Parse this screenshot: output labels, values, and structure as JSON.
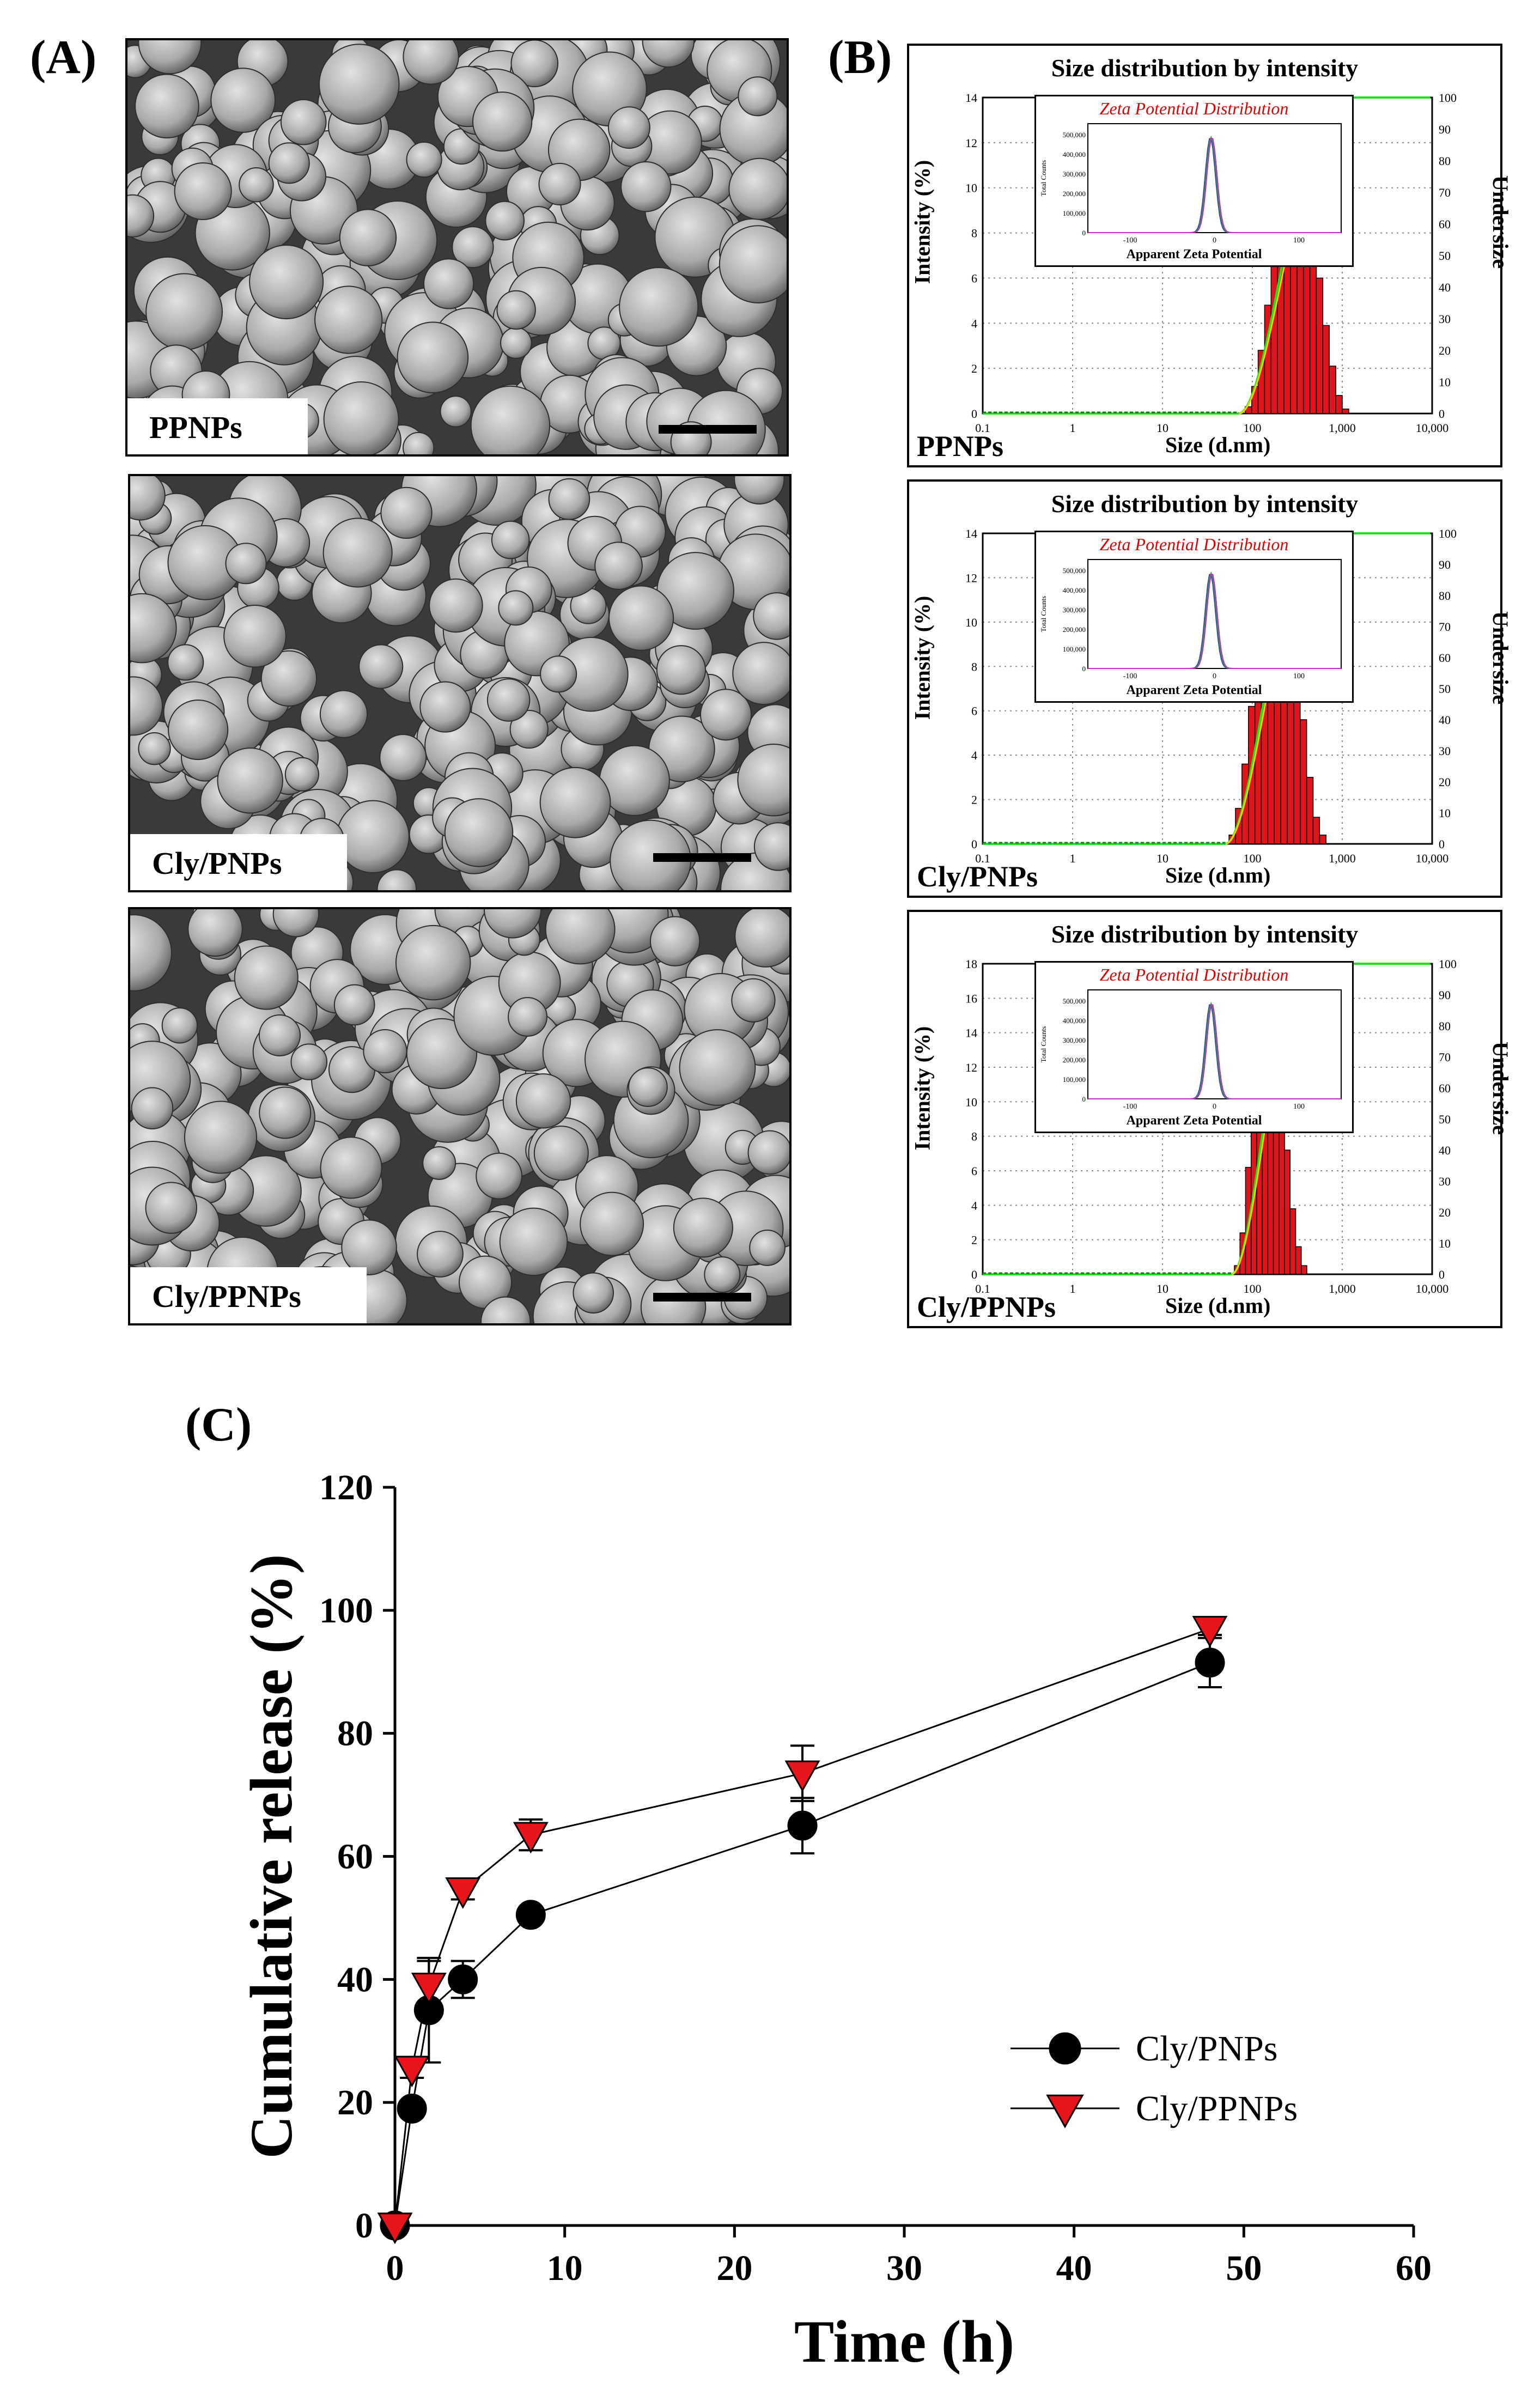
{
  "figure": {
    "panel_a_label": "(A)",
    "panel_b_label": "(B)",
    "panel_c_label": "(C)"
  },
  "sem_panels": [
    {
      "label": "PPNPs"
    },
    {
      "label": "Cly/PNPs"
    },
    {
      "label": "Cly/PPNPs"
    }
  ],
  "dls_panels": [
    {
      "title": "Size distribution  by intensity",
      "sample": "PPNPs",
      "xlabel": "Size (d.nm)",
      "ylabel_left": "Intensity (%)",
      "ylabel_right": "Undersize",
      "y_ticks": [
        "0",
        "2",
        "4",
        "6",
        "8",
        "10",
        "12",
        "14"
      ],
      "y_max": 14,
      "right_ticks": [
        "0",
        "10",
        "20",
        "30",
        "40",
        "50",
        "60",
        "70",
        "80",
        "90",
        "100"
      ],
      "x_ticks": [
        "0.1",
        "1",
        "10",
        "100",
        "1,000",
        "10,000"
      ],
      "histogram": {
        "start_log": 1.92,
        "bin_width": 0.072,
        "values": [
          0.3,
          1.2,
          2.8,
          4.8,
          7.2,
          9.6,
          11.6,
          12.2,
          11.9,
          10.6,
          8.4,
          6.0,
          3.9,
          2.1,
          0.8,
          0.2
        ]
      },
      "cumulative": {
        "start_log": 1.85,
        "end_log": 2.85
      },
      "inset": {
        "title": "Zeta Potential Distribution",
        "xlabel": "Apparent Zeta  Potential",
        "ylabel": "Total Counts",
        "y_ticks": [
          "0",
          "100,000",
          "200,000",
          "300,000",
          "400,000",
          "500,000"
        ],
        "x_ticks": [
          "-100",
          "0",
          "100"
        ],
        "peak_position": -5
      }
    },
    {
      "title": "Size distribution  by intensity",
      "sample": "Cly/PNPs",
      "xlabel": "Size (d.nm)",
      "ylabel_left": "Intensity (%)",
      "ylabel_right": "Undersize",
      "y_ticks": [
        "0",
        "2",
        "4",
        "6",
        "8",
        "10",
        "12",
        "14"
      ],
      "y_max": 14,
      "right_ticks": [
        "0",
        "10",
        "20",
        "30",
        "40",
        "50",
        "60",
        "70",
        "80",
        "90",
        "100"
      ],
      "x_ticks": [
        "0.1",
        "1",
        "10",
        "100",
        "1,000",
        "10,000"
      ],
      "histogram": {
        "start_log": 1.74,
        "bin_width": 0.072,
        "values": [
          0.4,
          1.6,
          3.6,
          6.2,
          9.0,
          11.4,
          12.8,
          13.3,
          12.6,
          10.8,
          8.2,
          5.6,
          3.0,
          1.2,
          0.4
        ]
      },
      "cumulative": {
        "start_log": 1.7,
        "end_log": 2.6
      },
      "inset": {
        "title": "Zeta Potential Distribution",
        "xlabel": "Apparent Zeta  Potential",
        "ylabel": "Total Counts",
        "y_ticks": [
          "0",
          "100,000",
          "200,000",
          "300,000",
          "400,000",
          "500,000"
        ],
        "x_ticks": [
          "-100",
          "0",
          "100"
        ],
        "peak_position": -5
      }
    },
    {
      "title": "Size distribution  by intensity",
      "sample": "Cly/PPNPs",
      "xlabel": "Size (d.nm)",
      "ylabel_left": "Intensity (%)",
      "ylabel_right": "Undersize",
      "y_ticks": [
        "0",
        "2",
        "4",
        "6",
        "8",
        "10",
        "12",
        "14",
        "16",
        "18"
      ],
      "y_max": 18,
      "right_ticks": [
        "0",
        "10",
        "20",
        "30",
        "40",
        "50",
        "60",
        "70",
        "80",
        "90",
        "100"
      ],
      "x_ticks": [
        "0.1",
        "1",
        "10",
        "100",
        "1,000",
        "10,000"
      ],
      "histogram": {
        "start_log": 1.8,
        "bin_width": 0.062,
        "values": [
          0.5,
          2.4,
          6.2,
          10.6,
          14.2,
          16.1,
          16.0,
          14.2,
          11.0,
          7.2,
          3.8,
          1.6,
          0.5
        ]
      },
      "cumulative": {
        "start_log": 1.77,
        "end_log": 2.5
      },
      "inset": {
        "title": "Zeta Potential Distribution",
        "xlabel": "Apparent Zeta  Potential",
        "ylabel": "Total Counts",
        "y_ticks": [
          "0",
          "100,000",
          "200,000",
          "300,000",
          "400,000",
          "500,000"
        ],
        "x_ticks": [
          "-100",
          "0",
          "100"
        ],
        "peak_position": -5
      }
    }
  ],
  "chart_data": {
    "type": "line",
    "title": "",
    "xlabel": "Time (h)",
    "ylabel": "Cumulative release (%)",
    "xlim": [
      0,
      60
    ],
    "ylim": [
      0,
      120
    ],
    "x_ticks": [
      0,
      10,
      20,
      30,
      40,
      50,
      60
    ],
    "y_ticks": [
      0,
      20,
      40,
      60,
      80,
      100,
      120
    ],
    "legend_position": "lower-right",
    "series": [
      {
        "name": "Cly/PNPs",
        "marker": "circle",
        "color": "#000000",
        "x": [
          0,
          1,
          2,
          4,
          8,
          24,
          48
        ],
        "y": [
          0,
          19,
          35,
          40,
          50.5,
          65,
          91.5
        ],
        "err": [
          0,
          1,
          8.5,
          3,
          1,
          4.5,
          4
        ]
      },
      {
        "name": "Cly/PPNPs",
        "marker": "triangle-down",
        "color": "#e8141b",
        "x": [
          0,
          1,
          2,
          4,
          8,
          24,
          48
        ],
        "y": [
          0,
          25.5,
          39,
          54.5,
          63.5,
          73.5,
          97
        ],
        "err": [
          0,
          1.5,
          4,
          1.5,
          2.5,
          4.5,
          1
        ]
      }
    ]
  }
}
